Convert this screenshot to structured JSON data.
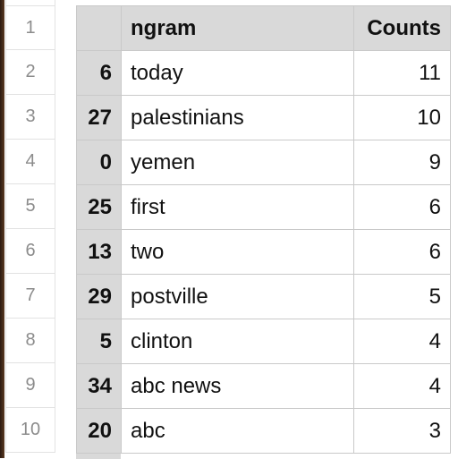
{
  "row_numbers": [
    "1",
    "2",
    "3",
    "4",
    "5",
    "6",
    "7",
    "8",
    "9",
    "10"
  ],
  "table": {
    "headers": {
      "index": "",
      "ngram": "ngram",
      "counts": "Counts"
    },
    "rows": [
      {
        "index": "6",
        "ngram": "today",
        "counts": "11"
      },
      {
        "index": "27",
        "ngram": "palestinians",
        "counts": "10"
      },
      {
        "index": "0",
        "ngram": "yemen",
        "counts": "9"
      },
      {
        "index": "25",
        "ngram": "first",
        "counts": "6"
      },
      {
        "index": "13",
        "ngram": "two",
        "counts": "6"
      },
      {
        "index": "29",
        "ngram": "postville",
        "counts": "5"
      },
      {
        "index": "5",
        "ngram": "clinton",
        "counts": "4"
      },
      {
        "index": "34",
        "ngram": "abc news",
        "counts": "4"
      },
      {
        "index": "20",
        "ngram": "abc",
        "counts": "3"
      }
    ]
  },
  "colors": {
    "header_bg": "#d9d9d9",
    "grid_line": "#c9c9c9",
    "row_number_text": "#8c8c8c"
  }
}
